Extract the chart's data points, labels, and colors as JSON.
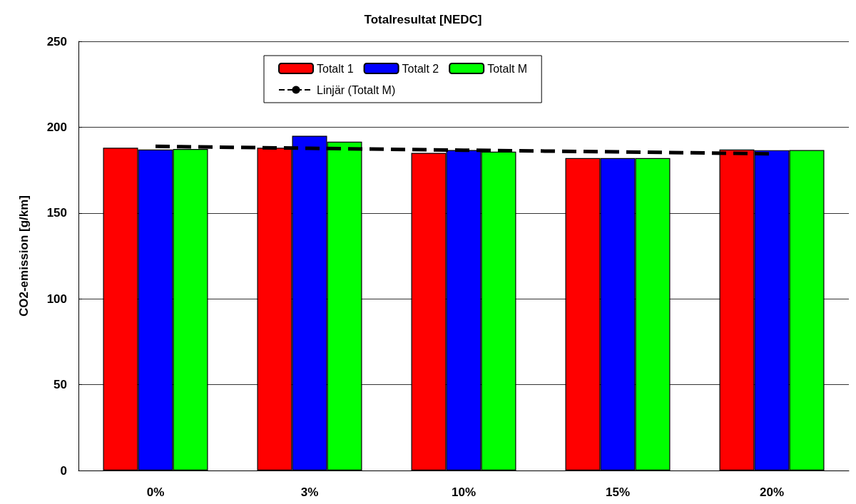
{
  "chart_data": {
    "type": "bar",
    "title": "Totalresultat [NEDC]",
    "ylabel": "CO2-emission [g/km]",
    "categories": [
      "0%",
      "3%",
      "10%",
      "15%",
      "20%"
    ],
    "series": [
      {
        "name": "Totalt 1",
        "color": "#ff0000",
        "values": [
          188,
          188,
          185,
          182,
          187
        ]
      },
      {
        "name": "Totalt 2",
        "color": "#0000ff",
        "values": [
          187,
          195,
          186.7,
          182,
          186.6
        ]
      },
      {
        "name": "Totalt M",
        "color": "#00ff00",
        "values": [
          187.3,
          191.5,
          185.7,
          182,
          186.7
        ]
      },
      {
        "name": "Linjär (Totalt M)",
        "type": "line",
        "color": "#000000",
        "line_style": "dashed",
        "marker": "none",
        "values": [
          188.8,
          187.7,
          186.6,
          185.6,
          184.5
        ]
      }
    ],
    "ylim": [
      0,
      250
    ],
    "yticks": [
      0,
      50,
      100,
      150,
      200,
      250
    ],
    "grid": "y",
    "legend": "top"
  }
}
